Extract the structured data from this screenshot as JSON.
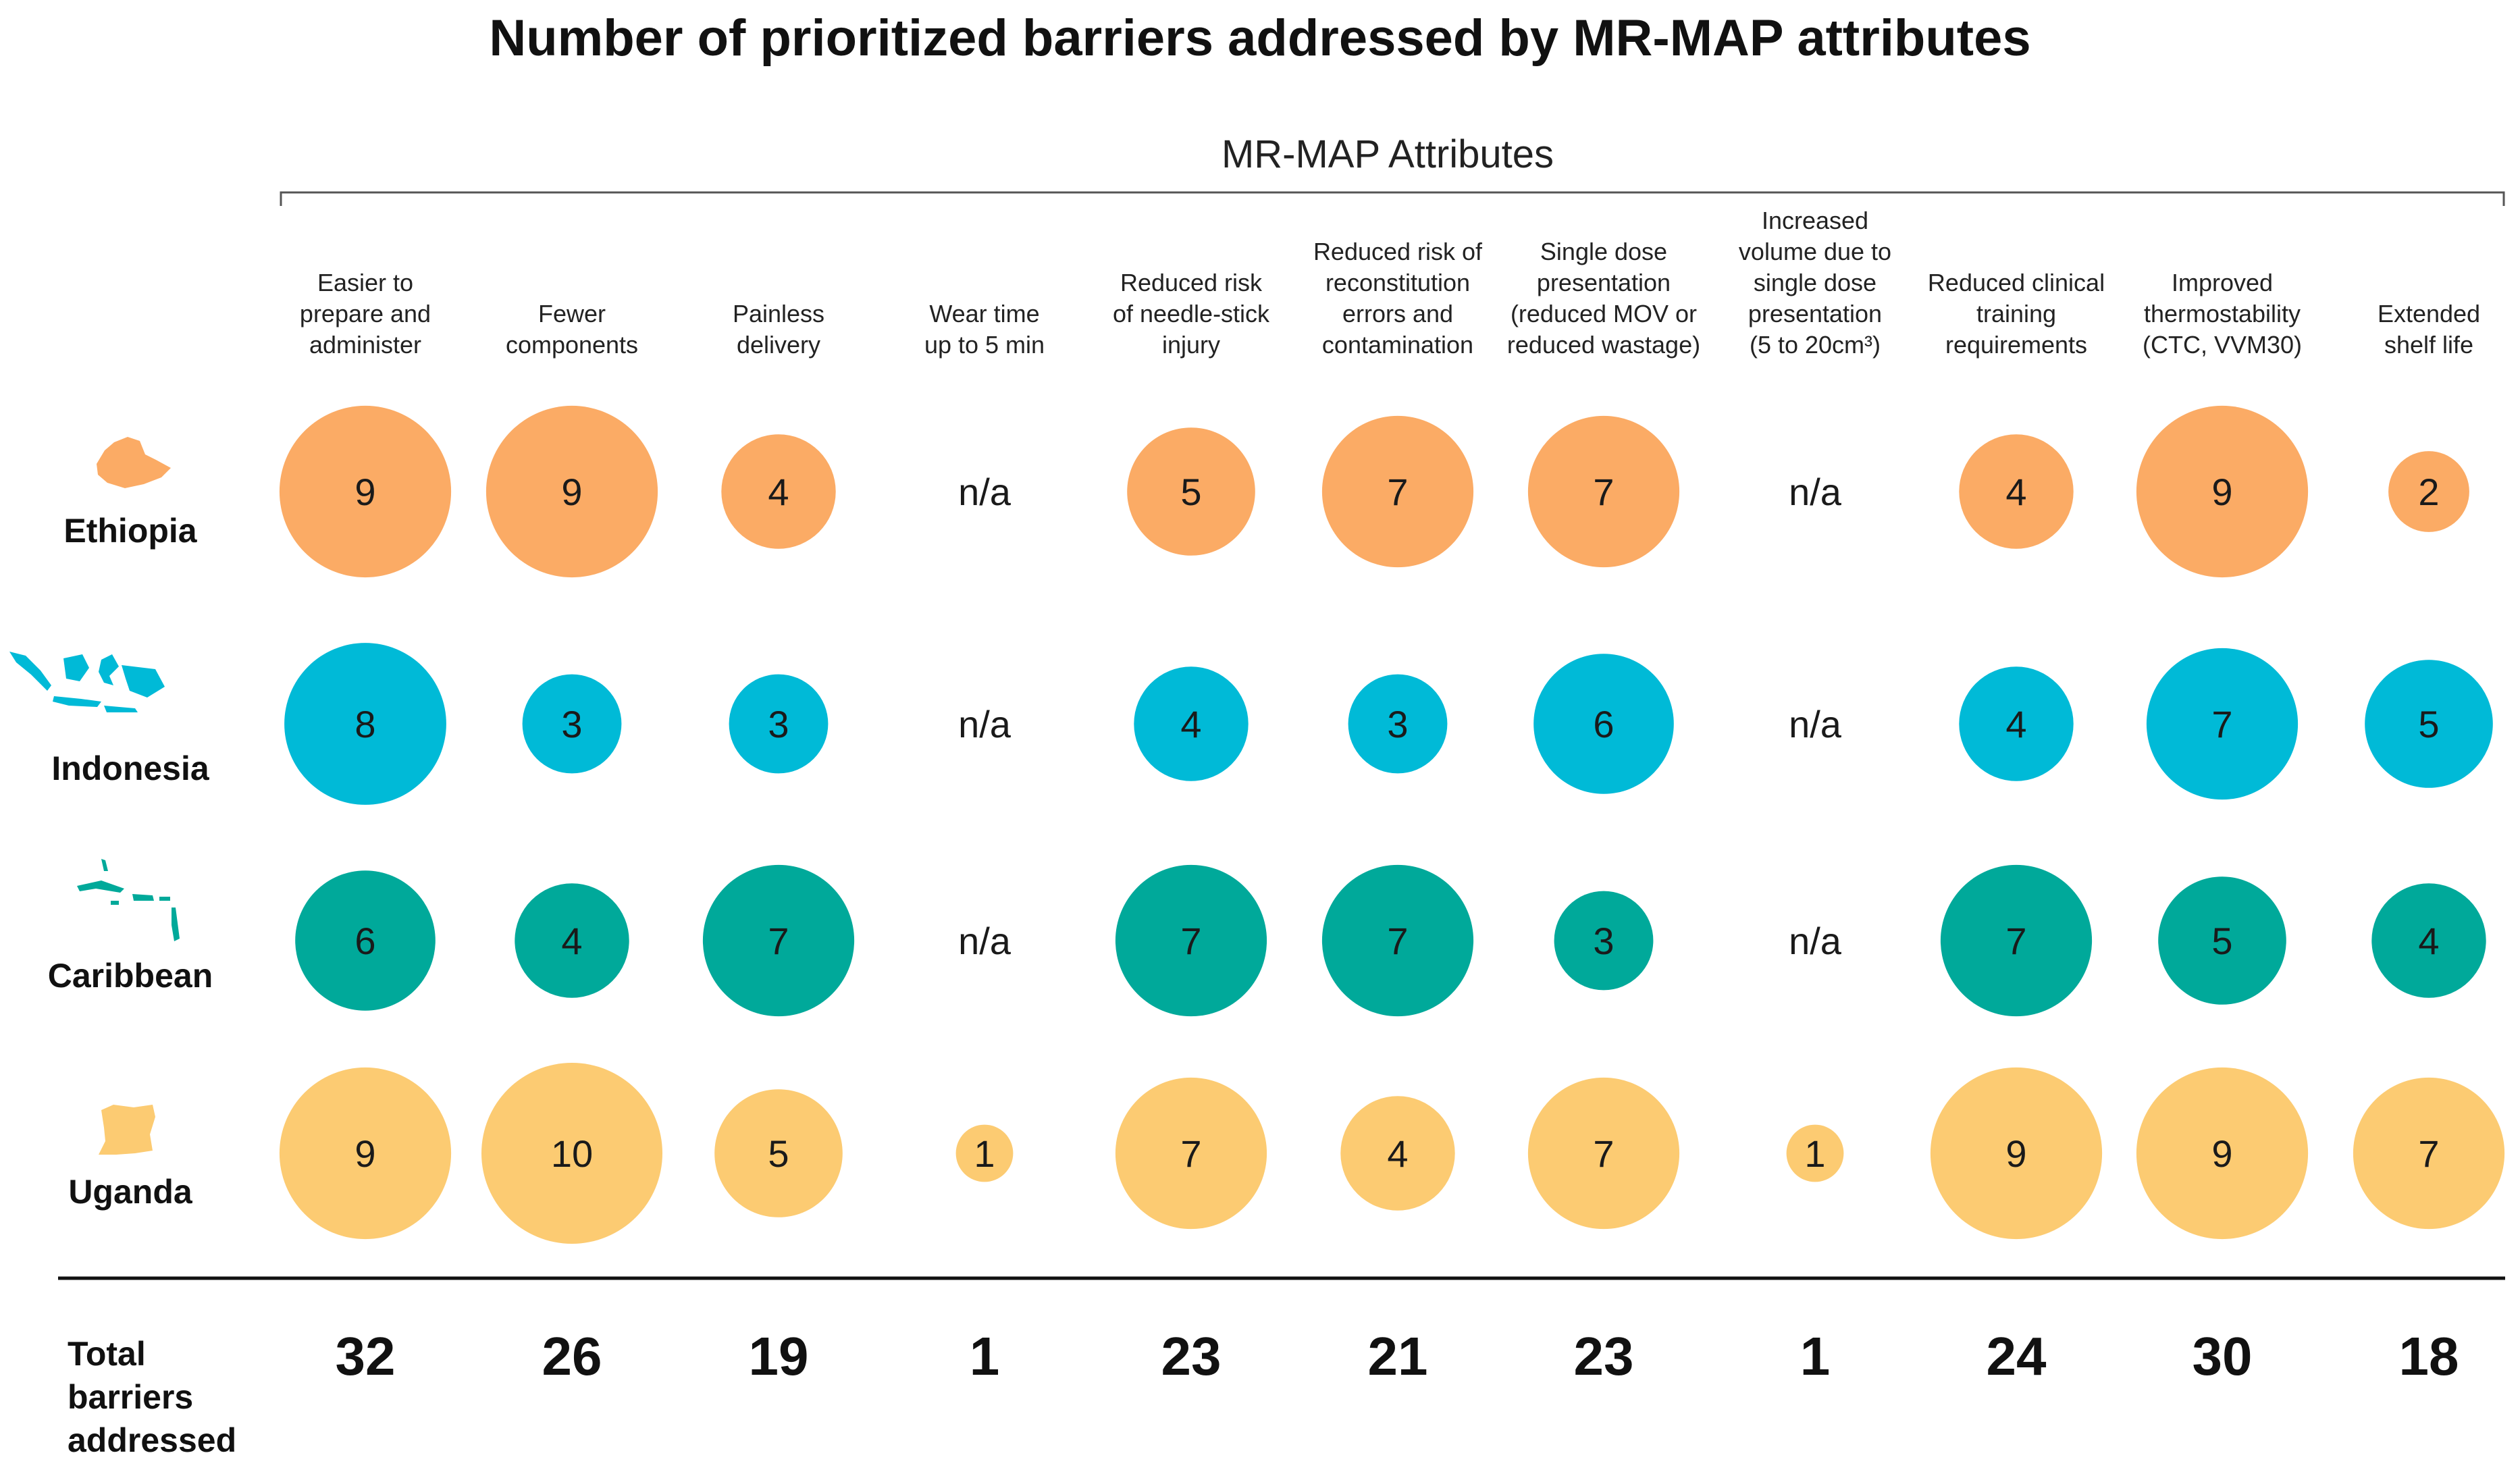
{
  "chart_data": {
    "type": "bubble-matrix",
    "title": "Number of prioritized barriers addressed by MR-MAP attributes",
    "column_group_label": "MR-MAP Attributes",
    "na_text": "n/a",
    "categories": [
      [
        "Easier to",
        "prepare and",
        "administer"
      ],
      [
        "Fewer",
        "components"
      ],
      [
        "Painless",
        "delivery"
      ],
      [
        "Wear time",
        "up to 5 min"
      ],
      [
        "Reduced risk",
        "of needle-stick",
        "injury"
      ],
      [
        "Reduced risk of",
        "reconstitution",
        "errors and",
        "contamination"
      ],
      [
        "Single dose",
        "presentation",
        "(reduced MOV or",
        "reduced wastage)"
      ],
      [
        "Increased",
        "volume due to",
        "single dose",
        "presentation",
        "(5 to 20cm³)"
      ],
      [
        "Reduced clinical",
        "training",
        "requirements"
      ],
      [
        "Improved",
        "thermostability",
        "(CTC, VVM30)"
      ],
      [
        "Extended",
        "shelf life"
      ]
    ],
    "series": [
      {
        "name": "Ethiopia",
        "color": "#FBAB65",
        "map_icon": "ethiopia-map-icon",
        "values": [
          9,
          9,
          4,
          null,
          5,
          7,
          7,
          null,
          4,
          9,
          2
        ]
      },
      {
        "name": "Indonesia",
        "color": "#00BAD7",
        "map_icon": "indonesia-map-icon",
        "values": [
          8,
          3,
          3,
          null,
          4,
          3,
          6,
          null,
          4,
          7,
          5
        ]
      },
      {
        "name": "Caribbean",
        "color": "#00A99A",
        "map_icon": "caribbean-map-icon",
        "values": [
          6,
          4,
          7,
          null,
          7,
          7,
          3,
          null,
          7,
          5,
          4
        ]
      },
      {
        "name": "Uganda",
        "color": "#FCCB72",
        "map_icon": "uganda-map-icon",
        "values": [
          9,
          10,
          5,
          1,
          7,
          4,
          7,
          1,
          9,
          9,
          7
        ]
      }
    ],
    "totals_label": [
      "Total",
      "barriers",
      "addressed"
    ],
    "totals": [
      32,
      26,
      19,
      1,
      23,
      21,
      23,
      1,
      24,
      30,
      18
    ],
    "size_encoding": "bubble area proportional to value (max 10)"
  }
}
